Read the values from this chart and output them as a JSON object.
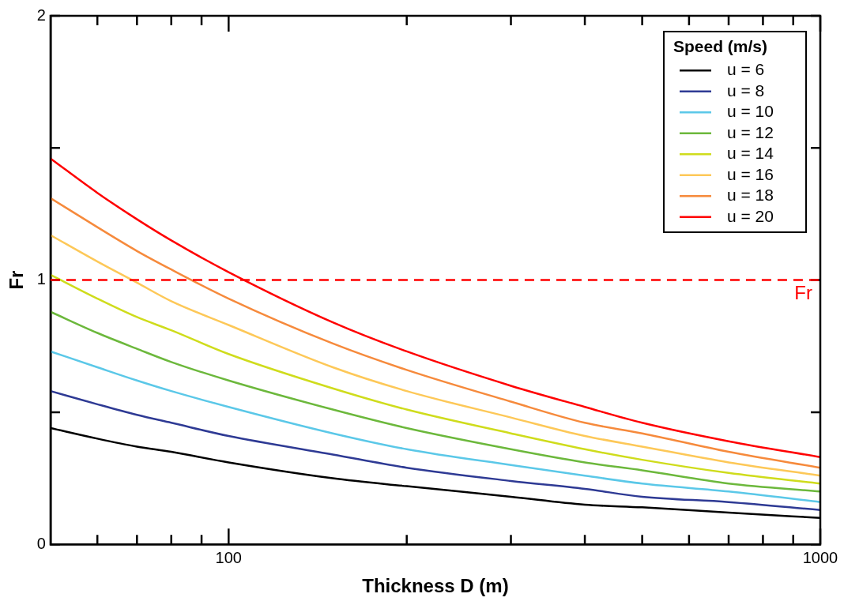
{
  "chart_data": {
    "type": "line",
    "xlabel": "Thickness D (m)",
    "ylabel": "Fr",
    "legend_title": "Speed (m/s)",
    "legend": "top right",
    "grid": false,
    "log": "x",
    "line_style": "solid",
    "marker": "none",
    "x": [
      50,
      60,
      70,
      80,
      100,
      150,
      200,
      300,
      400,
      500,
      700,
      1000
    ],
    "xlim": [
      50,
      1000
    ],
    "xticks": [
      {
        "value": 60,
        "label": null
      },
      {
        "value": 70,
        "label": null
      },
      {
        "value": 80,
        "label": null
      },
      {
        "value": 90,
        "label": null
      },
      100,
      {
        "value": 200,
        "label": null
      },
      {
        "value": 300,
        "label": null
      },
      {
        "value": 400,
        "label": null
      },
      {
        "value": 500,
        "label": null
      },
      {
        "value": 600,
        "label": null
      },
      {
        "value": 700,
        "label": null
      },
      {
        "value": 800,
        "label": null
      },
      {
        "value": 900,
        "label": null
      },
      1000
    ],
    "ylim": [
      0,
      2
    ],
    "yticks": [
      0,
      {
        "value": 0.5,
        "label": null
      },
      1,
      {
        "value": 1.5,
        "label": null
      },
      2
    ],
    "series": [
      {
        "name": "u = 6",
        "color": "#000000",
        "values": [
          0.44,
          0.4,
          0.37,
          0.35,
          0.31,
          0.25,
          0.22,
          0.18,
          0.15,
          0.14,
          0.12,
          0.1
        ]
      },
      {
        "name": "u = 8",
        "color": "#2e3a94",
        "values": [
          0.58,
          0.53,
          0.49,
          0.46,
          0.41,
          0.34,
          0.29,
          0.24,
          0.21,
          0.18,
          0.16,
          0.13
        ]
      },
      {
        "name": "u = 10",
        "color": "#5bc8e8",
        "values": [
          0.73,
          0.67,
          0.62,
          0.58,
          0.52,
          0.42,
          0.36,
          0.3,
          0.26,
          0.23,
          0.2,
          0.16
        ]
      },
      {
        "name": "u = 12",
        "color": "#6cb83c",
        "values": [
          0.88,
          0.8,
          0.74,
          0.69,
          0.62,
          0.51,
          0.44,
          0.36,
          0.31,
          0.28,
          0.23,
          0.2
        ]
      },
      {
        "name": "u = 14",
        "color": "#cfdc1c",
        "values": [
          1.02,
          0.93,
          0.86,
          0.81,
          0.72,
          0.59,
          0.51,
          0.42,
          0.36,
          0.32,
          0.27,
          0.23
        ]
      },
      {
        "name": "u = 16",
        "color": "#fdc858",
        "values": [
          1.17,
          1.07,
          0.99,
          0.92,
          0.83,
          0.67,
          0.58,
          0.48,
          0.41,
          0.37,
          0.31,
          0.26
        ]
      },
      {
        "name": "u = 18",
        "color": "#f68a3c",
        "values": [
          1.31,
          1.2,
          1.11,
          1.04,
          0.93,
          0.76,
          0.66,
          0.54,
          0.46,
          0.42,
          0.35,
          0.29
        ]
      },
      {
        "name": "u = 20",
        "color": "#ff0000",
        "values": [
          1.46,
          1.33,
          1.23,
          1.15,
          1.03,
          0.84,
          0.73,
          0.6,
          0.52,
          0.46,
          0.39,
          0.33
        ]
      }
    ],
    "ref_lines": [
      {
        "axis": "y",
        "value": 1,
        "label": "Fr",
        "color": "#ff0000",
        "line_style": "dashed"
      }
    ]
  }
}
